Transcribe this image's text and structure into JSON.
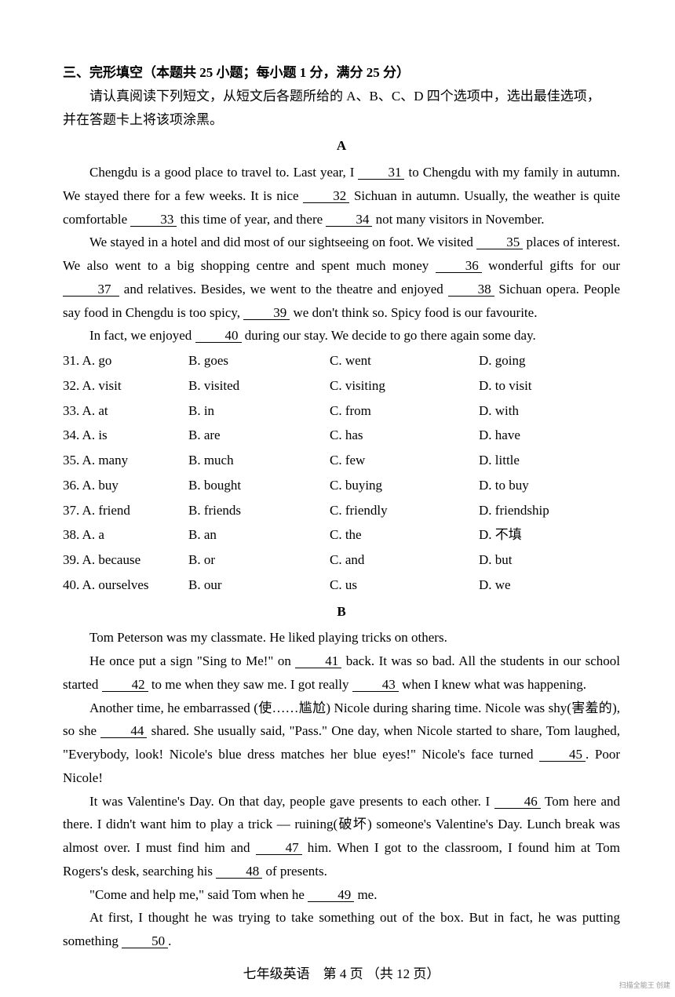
{
  "section_title": "三、完形填空（本题共 25 小题；每小题 1 分，满分 25 分）",
  "instruction": "请认真阅读下列短文，从短文后各题所给的 A、B、C、D 四个选项中，选出最佳选项，",
  "instruction2": "并在答题卡上将该项涂黑。",
  "label_A": "A",
  "label_B": "B",
  "A_p1_a": "Chengdu is a good place to travel to. Last year, I ",
  "b31": "31",
  "A_p1_b": " to Chengdu with my family in autumn. We stayed there for a few weeks. It is nice ",
  "b32": "32",
  "A_p1_c": " Sichuan in autumn. Usually, the weather is quite comfortable ",
  "b33": "33",
  "A_p1_d": " this time of year, and there ",
  "b34": "34",
  "A_p1_e": " not many visitors in November.",
  "A_p2_a": "We stayed in a hotel and did most of our sightseeing on foot. We visited ",
  "b35": "35",
  "A_p2_b": " places of interest. We also went to a big shopping centre and spent much money ",
  "b36": "36",
  "A_p2_c": " wonderful gifts for our ",
  "b37": "37",
  "A_p2_d": " and relatives. Besides, we went to the theatre and enjoyed ",
  "b38": "38",
  "A_p2_e": " Sichuan opera. People say food in Chengdu is too spicy, ",
  "b39": "39",
  "A_p2_f": " we don't think so. Spicy food is our favourite.",
  "A_p3_a": "In fact, we enjoyed ",
  "b40": "40",
  "A_p3_b": " during our stay. We decide to go there again some day.",
  "opts": [
    [
      "31. A. go",
      "B. goes",
      "C. went",
      "D. going"
    ],
    [
      "32. A. visit",
      "B. visited",
      "C. visiting",
      "D. to visit"
    ],
    [
      "33. A. at",
      "B. in",
      "C. from",
      "D. with"
    ],
    [
      "34. A. is",
      "B. are",
      "C. has",
      "D. have"
    ],
    [
      "35. A. many",
      "B. much",
      "C. few",
      "D. little"
    ],
    [
      "36. A. buy",
      "B. bought",
      "C. buying",
      "D. to buy"
    ],
    [
      "37. A. friend",
      "B. friends",
      "C. friendly",
      "D. friendship"
    ],
    [
      "38. A. a",
      "B. an",
      "C. the",
      "D. 不填"
    ],
    [
      "39. A. because",
      "B. or",
      "C. and",
      "D. but"
    ],
    [
      "40. A. ourselves",
      "B. our",
      "C. us",
      "D. we"
    ]
  ],
  "B_p1": "Tom Peterson was my classmate. He liked playing tricks on others.",
  "B_p2_a": "He once put a sign \"Sing to Me!\" on ",
  "b41": "41",
  "B_p2_b": " back. It was so bad. All the students in our school started ",
  "b42": "42",
  "B_p2_c": " to me when they saw me. I got really ",
  "b43": "43",
  "B_p2_d": " when I knew what was happening.",
  "B_p3_a": "Another time, he embarrassed (使……尴尬) Nicole during sharing time. Nicole was shy(害羞的), so she ",
  "b44": "44",
  "B_p3_b": " shared. She usually said, \"Pass.\" One day, when Nicole started to share, Tom laughed, \"Everybody, look! Nicole's blue dress matches her blue eyes!\" Nicole's face turned ",
  "b45": "45",
  "B_p3_c": ". Poor Nicole!",
  "B_p4_a": "It was Valentine's Day. On that day, people gave presents to each other. I ",
  "b46": "46",
  "B_p4_b": " Tom here and there. I didn't want him to play a trick — ruining(破坏) someone's Valentine's Day. Lunch break was almost over. I must find him and ",
  "b47": "47",
  "B_p4_c": " him. When I got to the classroom, I found him at Tom Rogers's desk, searching his ",
  "b48": "48",
  "B_p4_d": " of presents.",
  "B_p5_a": "\"Come and help me,\" said Tom when he ",
  "b49": "49",
  "B_p5_b": " me.",
  "B_p6_a": "At first, I thought he was trying to take something out of the box. But in fact, he was putting something ",
  "b50": "50",
  "B_p6_b": ".",
  "footer": "七年级英语　第 4 页 （共 12 页）",
  "watermark": "扫描全能王 创建"
}
